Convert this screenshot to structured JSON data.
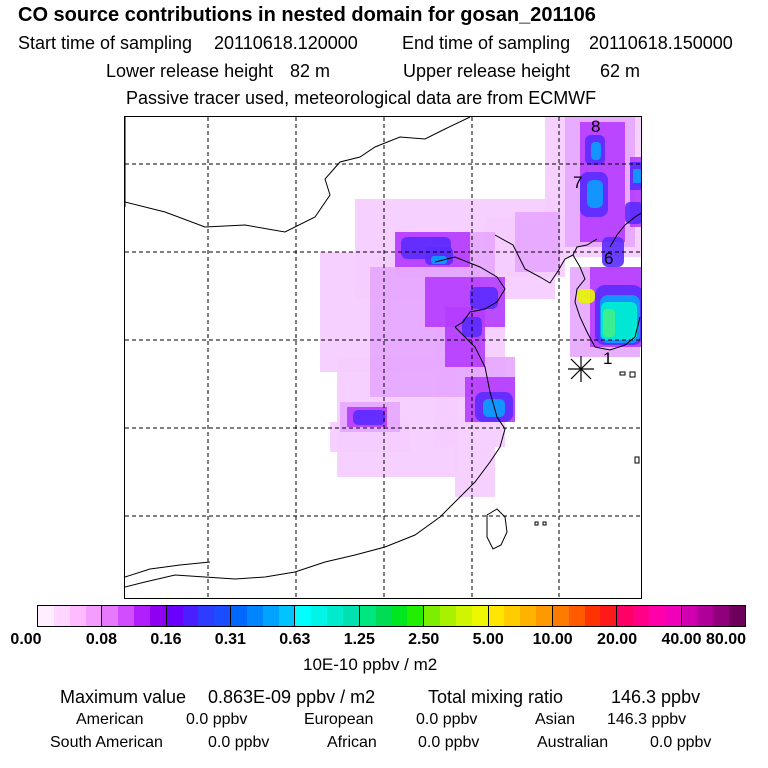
{
  "header": {
    "title": "CO  source contributions in nested domain for gosan_201106",
    "start_label": "Start time of sampling",
    "start_value": "20110618.120000",
    "end_label": "End time of sampling",
    "end_value": "20110618.150000",
    "lower_label": "Lower release height",
    "lower_value": "82 m",
    "upper_label": "Upper release height",
    "upper_value": "62 m",
    "note": "Passive tracer used, meteorological data are from ECMWF"
  },
  "map": {
    "markers": [
      "8",
      "7",
      "6",
      "1"
    ],
    "release_marker": "receptor-asterisk-icon"
  },
  "colorbar": {
    "ticks": [
      "0.00",
      "0.08",
      "0.16",
      "0.31",
      "0.63",
      "1.25",
      "2.50",
      "5.00",
      "10.00",
      "20.00",
      "40.00",
      "80.00"
    ],
    "units": "10E-10 ppbv / m2",
    "colors": [
      [
        "#ffeeff",
        "#ffd6ff",
        "#ffbbff",
        "#f59cff"
      ],
      [
        "#e779ff",
        "#d24dff",
        "#b21fff",
        "#9000f0"
      ],
      [
        "#6a00ff",
        "#4b1eff",
        "#2e3cff",
        "#1c4cff"
      ],
      [
        "#0067ff",
        "#0085ff",
        "#00a3ff",
        "#00c3ff"
      ],
      [
        "#00ffff",
        "#00f5e6",
        "#00ebcc",
        "#00e0b0"
      ],
      [
        "#00e680",
        "#00dd55",
        "#00e61f",
        "#22ee00"
      ],
      [
        "#7cee00",
        "#a8f200",
        "#cff500",
        "#eff700"
      ],
      [
        "#ffe600",
        "#ffcc00",
        "#ffb300",
        "#ff9900"
      ],
      [
        "#ff7a00",
        "#ff5a00",
        "#ff3300",
        "#ff1a1a"
      ],
      [
        "#ff0066",
        "#ff0088",
        "#ff00aa",
        "#f000b8"
      ],
      [
        "#d000b0",
        "#b0009a",
        "#90007c",
        "#6e005c"
      ]
    ]
  },
  "stats": {
    "max_label": "Maximum value",
    "max_value": "0.863E-09 ppbv / m2",
    "total_label": "Total mixing ratio",
    "total_value": "146.3 ppbv",
    "american_label": "American",
    "american_value": "0.0 ppbv",
    "european_label": "European",
    "european_value": "0.0 ppbv",
    "asian_label": "Asian",
    "asian_value": "146.3 ppbv",
    "south_american_label": "South American",
    "south_american_value": "0.0 ppbv",
    "african_label": "African",
    "african_value": "0.0 ppbv",
    "australian_label": "Australian",
    "australian_value": "0.0 ppbv"
  }
}
